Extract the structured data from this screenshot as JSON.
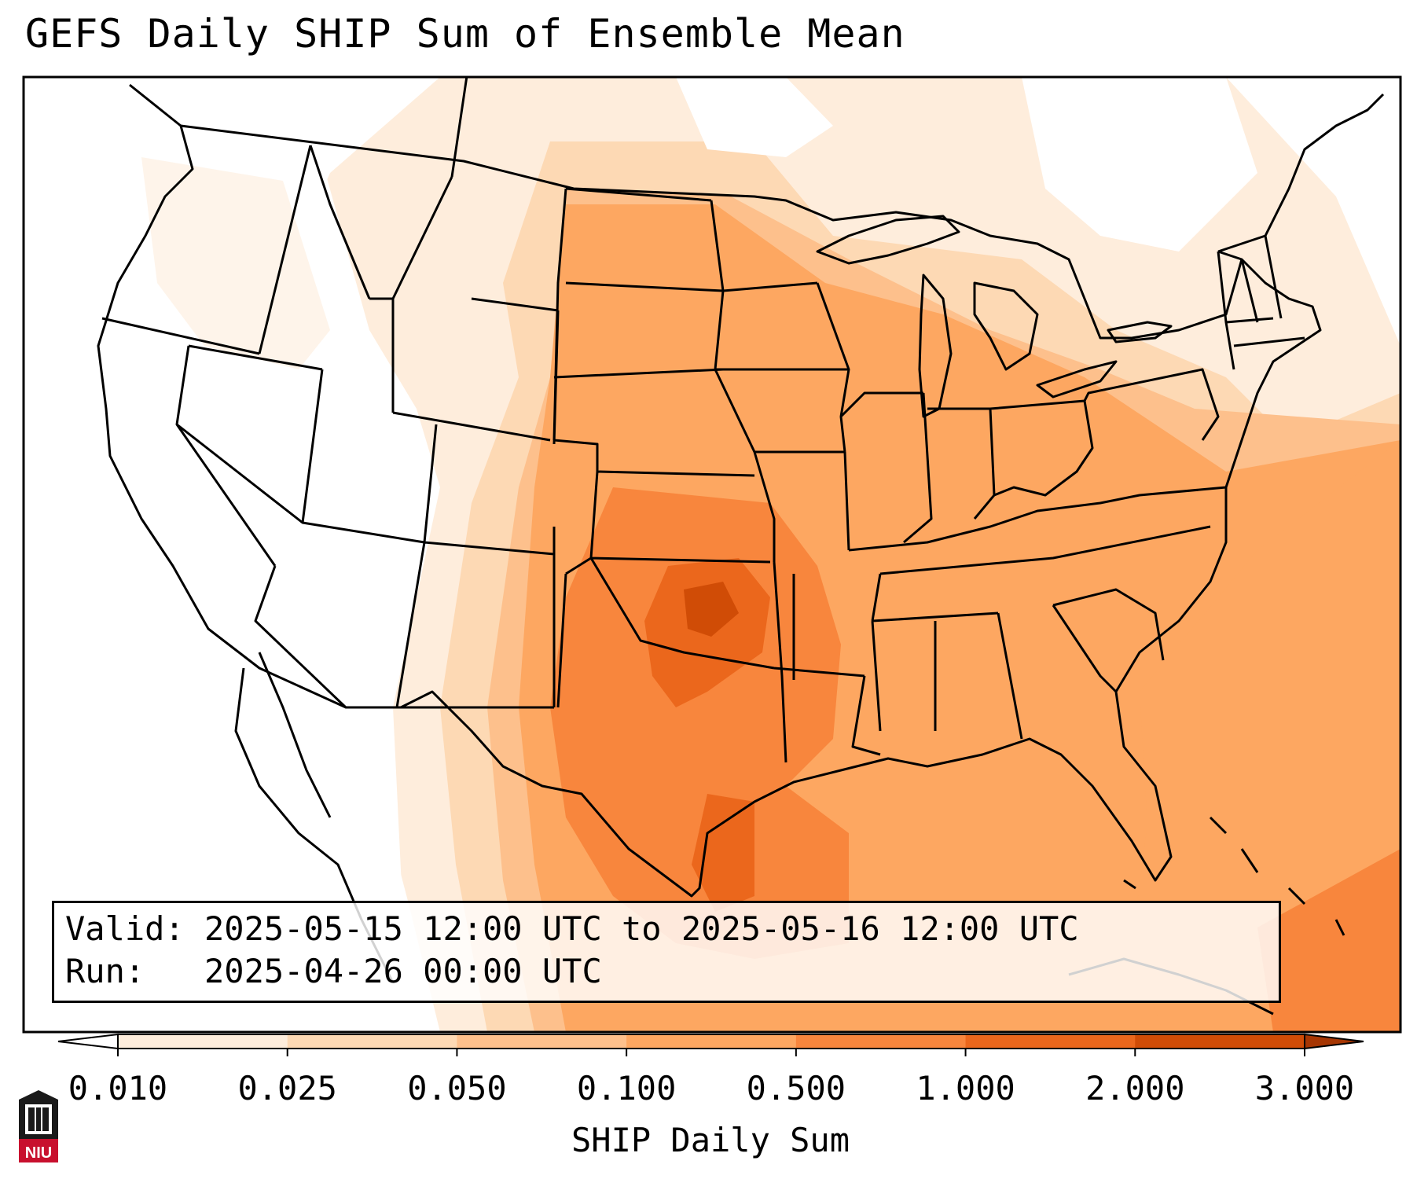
{
  "title": "GEFS Daily SHIP Sum of Ensemble Mean",
  "info": {
    "valid_label": "Valid:",
    "valid_value": "2025-05-15 12:00 UTC to 2025-05-16 12:00 UTC",
    "run_label": "Run:",
    "run_value": "2025-04-26 00:00 UTC"
  },
  "colorbar": {
    "title": "SHIP Daily Sum",
    "ticks": [
      "0.010",
      "0.025",
      "0.050",
      "0.100",
      "0.500",
      "1.000",
      "2.000",
      "3.000"
    ],
    "colors": [
      "#feeddc",
      "#fdd9b4",
      "#fdc08c",
      "#fda761",
      "#f8863d",
      "#eb671c",
      "#d04c06"
    ],
    "extend_low_color": "#ffffff",
    "extend_high_color": "#a63603"
  },
  "logo": {
    "text": "NIU",
    "color": "#c8102e"
  },
  "map": {
    "projection": "Lambert conformal, CONUS",
    "features": [
      "state borders",
      "coastlines",
      "Great Lakes",
      "Mexico",
      "Canada",
      "Caribbean"
    ],
    "max_region": "Oklahoma / north Texas / Gulf of Mexico"
  }
}
